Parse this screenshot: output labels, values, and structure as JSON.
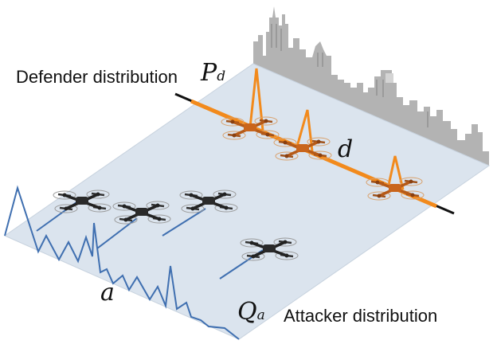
{
  "labels": {
    "defender_distribution": "Defender distribution",
    "p_main": "P",
    "p_sub": "d",
    "d": "d",
    "a": "a",
    "q_main": "Q",
    "q_sub": "a",
    "attacker_distribution": "Attacker distribution"
  },
  "colors": {
    "plane": "#dbe4ee",
    "plane_edge": "#c7d2de",
    "defender": "#f28a1c",
    "attacker": "#3f6fb0",
    "skyline": "#b3b3b3",
    "line": "#111111"
  },
  "icons": {
    "defender_drone": "quadcopter-drone-icon",
    "attacker_drone": "quadcopter-drone-icon",
    "skyline": "city-skyline-icon"
  }
}
